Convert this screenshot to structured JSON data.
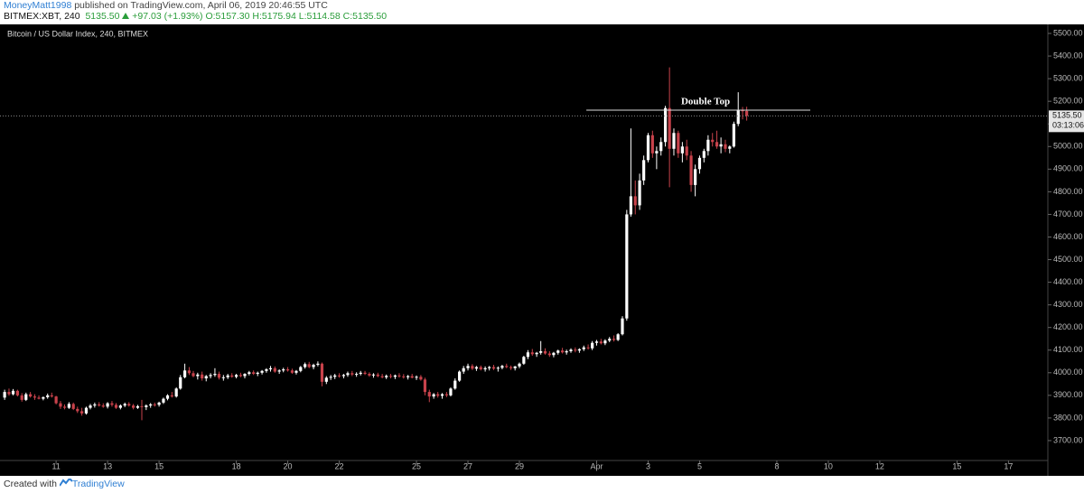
{
  "header": {
    "author": "MoneyMatt1998",
    "published": "published on TradingView.com, April 06, 2019 20:46:55 UTC",
    "symbol": "BITMEX:XBT, 240",
    "last": "5135.50",
    "change": "+97.03 (+1.93%)",
    "open": "O:5157.30",
    "high": "H:5175.94",
    "low": "L:5114.58",
    "close": "C:5135.50"
  },
  "footer": {
    "created": "Created with",
    "brand": "TradingView"
  },
  "chart_data": {
    "type": "candlestick",
    "title": "Bitcoin / US Dollar Index, 240, BITMEX",
    "up_color": "#ffffff",
    "down_color": "#c8424b",
    "grid": false,
    "xlim": [
      8.82,
      49.53
    ],
    "ylim": [
      3612,
      5540
    ],
    "xticks": [
      11,
      13,
      15,
      18,
      20,
      22,
      25,
      27,
      29,
      {
        "value": 32,
        "label": "Apr"
      },
      {
        "value": 34,
        "label": "3"
      },
      {
        "value": 36,
        "label": "5"
      },
      {
        "value": 39,
        "label": "8"
      },
      {
        "value": 41,
        "label": "10"
      },
      {
        "value": 43,
        "label": "12"
      },
      {
        "value": 46,
        "label": "15"
      },
      {
        "value": 48,
        "label": "17"
      }
    ],
    "yticks": [
      {
        "value": 3700,
        "label": "3700.00"
      },
      {
        "value": 3800,
        "label": "3800.00"
      },
      {
        "value": 3900,
        "label": "3900.00"
      },
      {
        "value": 4000,
        "label": "4000.00"
      },
      {
        "value": 4100,
        "label": "4100.00"
      },
      {
        "value": 4200,
        "label": "4200.00"
      },
      {
        "value": 4300,
        "label": "4300.00"
      },
      {
        "value": 4400,
        "label": "4400.00"
      },
      {
        "value": 4500,
        "label": "4500.00"
      },
      {
        "value": 4600,
        "label": "4600.00"
      },
      {
        "value": 4700,
        "label": "4700.00"
      },
      {
        "value": 4800,
        "label": "4800.00"
      },
      {
        "value": 4900,
        "label": "4900.00"
      },
      {
        "value": 5000,
        "label": "5000.00"
      },
      {
        "value": 5100,
        "label": "5100.00"
      },
      {
        "value": 5200,
        "label": "5200.00"
      },
      {
        "value": 5300,
        "label": "5300.00"
      },
      {
        "value": 5400,
        "label": "5400.00"
      },
      {
        "value": 5500,
        "label": "5500.00"
      }
    ],
    "annotation": {
      "text": "Double Top",
      "level": 5161,
      "x": [
        31.6,
        40.3
      ]
    },
    "last_price": {
      "value": 5135.5,
      "label": "5135.50"
    },
    "countdown": "03:13:06",
    "x": [
      9,
      9.17,
      9.33,
      9.5,
      9.67,
      9.83,
      10,
      10.17,
      10.33,
      10.5,
      10.67,
      10.83,
      11,
      11.17,
      11.33,
      11.5,
      11.67,
      11.83,
      12,
      12.17,
      12.33,
      12.5,
      12.67,
      12.83,
      13,
      13.17,
      13.33,
      13.5,
      13.67,
      13.83,
      14,
      14.17,
      14.33,
      14.5,
      14.67,
      14.83,
      15,
      15.17,
      15.33,
      15.5,
      15.67,
      15.83,
      16,
      16.17,
      16.33,
      16.5,
      16.67,
      16.83,
      17,
      17.17,
      17.33,
      17.5,
      17.67,
      17.83,
      18,
      18.17,
      18.33,
      18.5,
      18.67,
      18.83,
      19,
      19.17,
      19.33,
      19.5,
      19.67,
      19.83,
      20,
      20.17,
      20.33,
      20.5,
      20.67,
      20.83,
      21,
      21.17,
      21.33,
      21.5,
      21.67,
      21.83,
      22,
      22.17,
      22.33,
      22.5,
      22.67,
      22.83,
      23,
      23.17,
      23.33,
      23.5,
      23.67,
      23.83,
      24,
      24.17,
      24.33,
      24.5,
      24.67,
      24.83,
      25,
      25.17,
      25.33,
      25.5,
      25.67,
      25.83,
      26,
      26.17,
      26.33,
      26.5,
      26.67,
      26.83,
      27,
      27.17,
      27.33,
      27.5,
      27.67,
      27.83,
      28,
      28.17,
      28.33,
      28.5,
      28.67,
      28.83,
      29,
      29.17,
      29.33,
      29.5,
      29.67,
      29.83,
      30,
      30.17,
      30.33,
      30.5,
      30.67,
      30.83,
      31,
      31.17,
      31.33,
      31.5,
      31.67,
      31.83,
      32,
      32.17,
      32.33,
      32.5,
      32.67,
      32.83,
      33,
      33.17,
      33.33,
      33.5,
      33.67,
      33.83,
      34,
      34.17,
      34.33,
      34.5,
      34.67,
      34.83,
      35,
      35.17,
      35.33,
      35.5,
      35.67,
      35.83,
      36,
      36.17,
      36.33,
      36.5,
      36.67,
      36.83,
      37,
      37.17,
      37.33,
      37.5,
      37.67,
      37.83
    ],
    "ohlc": [
      [
        3890,
        3925,
        3880,
        3915
      ],
      [
        3915,
        3930,
        3898,
        3905
      ],
      [
        3905,
        3928,
        3900,
        3920
      ],
      [
        3920,
        3925,
        3895,
        3900
      ],
      [
        3900,
        3910,
        3872,
        3880
      ],
      [
        3880,
        3912,
        3875,
        3905
      ],
      [
        3905,
        3915,
        3890,
        3895
      ],
      [
        3895,
        3905,
        3880,
        3890
      ],
      [
        3890,
        3900,
        3882,
        3885
      ],
      [
        3885,
        3895,
        3878,
        3892
      ],
      [
        3892,
        3908,
        3885,
        3900
      ],
      [
        3900,
        3912,
        3890,
        3895
      ],
      [
        3895,
        3898,
        3860,
        3865
      ],
      [
        3865,
        3875,
        3840,
        3850
      ],
      [
        3850,
        3860,
        3838,
        3845
      ],
      [
        3845,
        3870,
        3840,
        3862
      ],
      [
        3862,
        3868,
        3835,
        3840
      ],
      [
        3840,
        3850,
        3822,
        3830
      ],
      [
        3830,
        3845,
        3810,
        3820
      ],
      [
        3820,
        3850,
        3815,
        3845
      ],
      [
        3845,
        3862,
        3838,
        3855
      ],
      [
        3855,
        3868,
        3846,
        3860
      ],
      [
        3860,
        3870,
        3850,
        3855
      ],
      [
        3855,
        3865,
        3845,
        3850
      ],
      [
        3850,
        3870,
        3842,
        3865
      ],
      [
        3865,
        3875,
        3850,
        3858
      ],
      [
        3858,
        3866,
        3840,
        3845
      ],
      [
        3845,
        3860,
        3838,
        3855
      ],
      [
        3855,
        3868,
        3848,
        3862
      ],
      [
        3862,
        3870,
        3850,
        3855
      ],
      [
        3855,
        3862,
        3838,
        3845
      ],
      [
        3845,
        3858,
        3840,
        3852
      ],
      [
        3852,
        3880,
        3790,
        3848
      ],
      [
        3848,
        3860,
        3835,
        3855
      ],
      [
        3855,
        3866,
        3845,
        3860
      ],
      [
        3860,
        3868,
        3850,
        3858
      ],
      [
        3858,
        3872,
        3850,
        3868
      ],
      [
        3868,
        3890,
        3862,
        3885
      ],
      [
        3885,
        3905,
        3878,
        3900
      ],
      [
        3900,
        3915,
        3890,
        3895
      ],
      [
        3895,
        3935,
        3890,
        3930
      ],
      [
        3930,
        3990,
        3925,
        3980
      ],
      [
        3980,
        4040,
        3975,
        4010
      ],
      [
        4010,
        4025,
        3990,
        3998
      ],
      [
        3998,
        4008,
        3980,
        3985
      ],
      [
        3985,
        4000,
        3970,
        3992
      ],
      [
        3992,
        4005,
        3965,
        3975
      ],
      [
        3975,
        3990,
        3962,
        3985
      ],
      [
        3985,
        3998,
        3975,
        3990
      ],
      [
        3990,
        4020,
        3982,
        3995
      ],
      [
        3995,
        4005,
        3970,
        3978
      ],
      [
        3978,
        3990,
        3965,
        3980
      ],
      [
        3980,
        3995,
        3972,
        3988
      ],
      [
        3988,
        3998,
        3978,
        3982
      ],
      [
        3982,
        3995,
        3975,
        3990
      ],
      [
        3990,
        4000,
        3980,
        3985
      ],
      [
        3985,
        3998,
        3975,
        3995
      ],
      [
        3995,
        4008,
        3988,
        4002
      ],
      [
        4002,
        4010,
        3990,
        3995
      ],
      [
        3995,
        4005,
        3985,
        4000
      ],
      [
        4000,
        4012,
        3992,
        4008
      ],
      [
        4008,
        4020,
        4000,
        4015
      ],
      [
        4015,
        4030,
        4005,
        4020
      ],
      [
        4020,
        4028,
        4000,
        4005
      ],
      [
        4005,
        4015,
        3995,
        4010
      ],
      [
        4010,
        4022,
        4002,
        4015
      ],
      [
        4015,
        4025,
        4005,
        4010
      ],
      [
        4010,
        4018,
        3995,
        4000
      ],
      [
        4000,
        4012,
        3992,
        4008
      ],
      [
        4008,
        4030,
        4002,
        4025
      ],
      [
        4025,
        4045,
        4018,
        4038
      ],
      [
        4038,
        4048,
        4020,
        4025
      ],
      [
        4025,
        4040,
        4015,
        4035
      ],
      [
        4035,
        4050,
        4028,
        4040
      ],
      [
        4040,
        4045,
        3940,
        3960
      ],
      [
        3960,
        3985,
        3950,
        3978
      ],
      [
        3978,
        3990,
        3968,
        3982
      ],
      [
        3982,
        3995,
        3972,
        3988
      ],
      [
        3988,
        3998,
        3978,
        3985
      ],
      [
        3985,
        3995,
        3975,
        3990
      ],
      [
        3990,
        4005,
        3982,
        3998
      ],
      [
        3998,
        4008,
        3985,
        3992
      ],
      [
        3992,
        4002,
        3982,
        3995
      ],
      [
        3995,
        4008,
        3988,
        4000
      ],
      [
        4000,
        4008,
        3990,
        3995
      ],
      [
        3995,
        4002,
        3982,
        3988
      ],
      [
        3988,
        3998,
        3978,
        3992
      ],
      [
        3992,
        4000,
        3980,
        3985
      ],
      [
        3985,
        3995,
        3975,
        3980
      ],
      [
        3980,
        3992,
        3972,
        3986
      ],
      [
        3986,
        3995,
        3975,
        3982
      ],
      [
        3982,
        3992,
        3972,
        3988
      ],
      [
        3988,
        3998,
        3978,
        3984
      ],
      [
        3984,
        3994,
        3974,
        3980
      ],
      [
        3980,
        3990,
        3970,
        3985
      ],
      [
        3985,
        3995,
        3975,
        3978
      ],
      [
        3978,
        3988,
        3968,
        3982
      ],
      [
        3982,
        3990,
        3965,
        3970
      ],
      [
        3970,
        3978,
        3900,
        3915
      ],
      [
        3915,
        3925,
        3870,
        3895
      ],
      [
        3895,
        3910,
        3885,
        3905
      ],
      [
        3905,
        3915,
        3890,
        3898
      ],
      [
        3898,
        3910,
        3885,
        3905
      ],
      [
        3905,
        3915,
        3892,
        3900
      ],
      [
        3900,
        3935,
        3895,
        3930
      ],
      [
        3930,
        3975,
        3925,
        3965
      ],
      [
        3965,
        4010,
        3960,
        4005
      ],
      [
        4005,
        4030,
        3995,
        4020
      ],
      [
        4020,
        4040,
        4010,
        4030
      ],
      [
        4030,
        4038,
        4012,
        4018
      ],
      [
        4018,
        4030,
        4008,
        4025
      ],
      [
        4025,
        4032,
        4010,
        4015
      ],
      [
        4015,
        4028,
        4005,
        4020
      ],
      [
        4020,
        4030,
        4010,
        4025
      ],
      [
        4025,
        4035,
        4012,
        4018
      ],
      [
        4018,
        4028,
        4005,
        4022
      ],
      [
        4022,
        4035,
        4015,
        4030
      ],
      [
        4030,
        4040,
        4020,
        4025
      ],
      [
        4025,
        4032,
        4012,
        4020
      ],
      [
        4020,
        4030,
        4010,
        4028
      ],
      [
        4028,
        4045,
        4020,
        4040
      ],
      [
        4040,
        4075,
        4035,
        4070
      ],
      [
        4070,
        4100,
        4060,
        4090
      ],
      [
        4090,
        4105,
        4075,
        4082
      ],
      [
        4082,
        4092,
        4070,
        4088
      ],
      [
        4088,
        4140,
        4080,
        4095
      ],
      [
        4095,
        4108,
        4080,
        4085
      ],
      [
        4085,
        4095,
        4070,
        4078
      ],
      [
        4078,
        4092,
        4068,
        4088
      ],
      [
        4088,
        4102,
        4080,
        4098
      ],
      [
        4098,
        4110,
        4085,
        4090
      ],
      [
        4090,
        4102,
        4080,
        4095
      ],
      [
        4095,
        4108,
        4088,
        4102
      ],
      [
        4102,
        4112,
        4090,
        4098
      ],
      [
        4098,
        4108,
        4088,
        4104
      ],
      [
        4104,
        4120,
        4096,
        4112
      ],
      [
        4112,
        4125,
        4102,
        4108
      ],
      [
        4108,
        4140,
        4100,
        4132
      ],
      [
        4132,
        4145,
        4120,
        4138
      ],
      [
        4138,
        4150,
        4125,
        4130
      ],
      [
        4130,
        4148,
        4122,
        4142
      ],
      [
        4142,
        4158,
        4135,
        4150
      ],
      [
        4150,
        4165,
        4138,
        4145
      ],
      [
        4145,
        4175,
        4140,
        4170
      ],
      [
        4170,
        4250,
        4165,
        4240
      ],
      [
        4240,
        4720,
        4230,
        4700
      ],
      [
        4700,
        5080,
        4690,
        4780
      ],
      [
        4780,
        4850,
        4700,
        4740
      ],
      [
        4740,
        4880,
        4720,
        4850
      ],
      [
        4850,
        4960,
        4830,
        4940
      ],
      [
        4940,
        5060,
        4930,
        5050
      ],
      [
        5050,
        5070,
        4950,
        4970
      ],
      [
        4970,
        5000,
        4900,
        4980
      ],
      [
        4980,
        5040,
        4960,
        5020
      ],
      [
        5020,
        5180,
        5000,
        5170
      ],
      [
        5170,
        5350,
        4820,
        4990
      ],
      [
        4990,
        5080,
        4960,
        5060
      ],
      [
        5060,
        5070,
        4950,
        4970
      ],
      [
        4970,
        5020,
        4930,
        5000
      ],
      [
        5000,
        5030,
        4940,
        4960
      ],
      [
        4960,
        4980,
        4800,
        4830
      ],
      [
        4830,
        4920,
        4780,
        4900
      ],
      [
        4900,
        4960,
        4880,
        4950
      ],
      [
        4950,
        4990,
        4930,
        4980
      ],
      [
        4980,
        5050,
        4960,
        5030
      ],
      [
        5030,
        5060,
        5000,
        5020
      ],
      [
        5020,
        5070,
        4990,
        5000
      ],
      [
        5000,
        5040,
        4970,
        5010
      ],
      [
        5010,
        5030,
        4975,
        4990
      ],
      [
        4990,
        5005,
        4970,
        5000
      ],
      [
        5000,
        5110,
        4995,
        5100
      ],
      [
        5100,
        5240,
        5090,
        5160
      ],
      [
        5160,
        5175,
        5120,
        5157.3
      ],
      [
        5157.3,
        5175.94,
        5114.58,
        5135.5
      ]
    ]
  }
}
